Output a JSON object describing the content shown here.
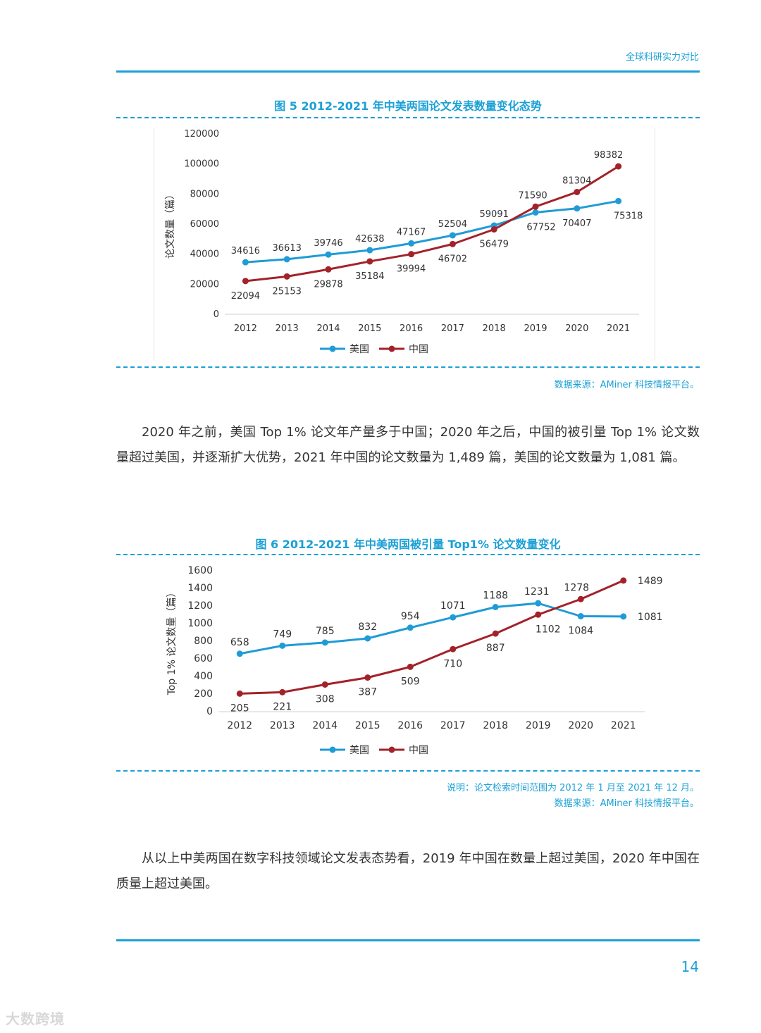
{
  "header": {
    "section_title": "全球科研实力对比"
  },
  "figure5": {
    "title": "图 5 2012-2021 年中美两国论文发表数量变化态势",
    "source": "数据来源：AMiner 科技情报平台。"
  },
  "paragraph1": "2020 年之前，美国 Top 1% 论文年产量多于中国；2020 年之后，中国的被引量 Top 1% 论文数量超过美国，并逐渐扩大优势，2021 年中国的论文数量为 1,489 篇，美国的论文数量为 1,081 篇。",
  "figure6": {
    "title": "图 6 2012-2021 年中美两国被引量 Top1% 论文数量变化",
    "note": "说明：论文检索时间范围为 2012 年 1 月至 2021 年 12 月。",
    "source": "数据来源：AMiner 科技情报平台。"
  },
  "paragraph2": "从以上中美两国在数字科技领域论文发表态势看，2019 年中国在数量上超过美国，2020 年中国在质量上超过美国。",
  "page_number": "14",
  "watermark": "大数跨境",
  "colors": {
    "accent": "#1ba0d6",
    "usa": "#1f9bd6",
    "china": "#a3222a"
  },
  "chart_data": [
    {
      "type": "line",
      "title": "图 5 2012-2021 年中美两国论文发表数量变化态势",
      "xlabel": "",
      "ylabel": "论文数量（篇）",
      "ylim": [
        0,
        120000
      ],
      "yticks": [
        "0",
        "20000",
        "40000",
        "60000",
        "80000",
        "100000",
        "120000"
      ],
      "categories": [
        "2012",
        "2013",
        "2014",
        "2015",
        "2016",
        "2017",
        "2018",
        "2019",
        "2020",
        "2021"
      ],
      "series": [
        {
          "name": "美国",
          "values": [
            34616,
            36613,
            39746,
            42638,
            47167,
            52504,
            59091,
            67752,
            70407,
            75318
          ]
        },
        {
          "name": "中国",
          "values": [
            22094,
            25153,
            29878,
            35184,
            39994,
            46702,
            56479,
            71590,
            81304,
            98382
          ]
        }
      ],
      "legend": "bottom-center"
    },
    {
      "type": "line",
      "title": "图 6 2012-2021 年中美两国被引量 Top1% 论文数量变化",
      "xlabel": "",
      "ylabel": "Top 1% 论文数量（篇）",
      "ylim": [
        0,
        1600
      ],
      "yticks": [
        "0",
        "200",
        "400",
        "600",
        "800",
        "1000",
        "1200",
        "1400",
        "1600"
      ],
      "categories": [
        "2012",
        "2013",
        "2014",
        "2015",
        "2016",
        "2017",
        "2018",
        "2019",
        "2020",
        "2021"
      ],
      "series": [
        {
          "name": "美国",
          "values": [
            658,
            749,
            785,
            832,
            954,
            1071,
            1188,
            1231,
            1084,
            1081
          ]
        },
        {
          "name": "中国",
          "values": [
            205,
            221,
            308,
            387,
            509,
            710,
            887,
            1102,
            1278,
            1489
          ]
        }
      ],
      "legend": "bottom-center"
    }
  ]
}
